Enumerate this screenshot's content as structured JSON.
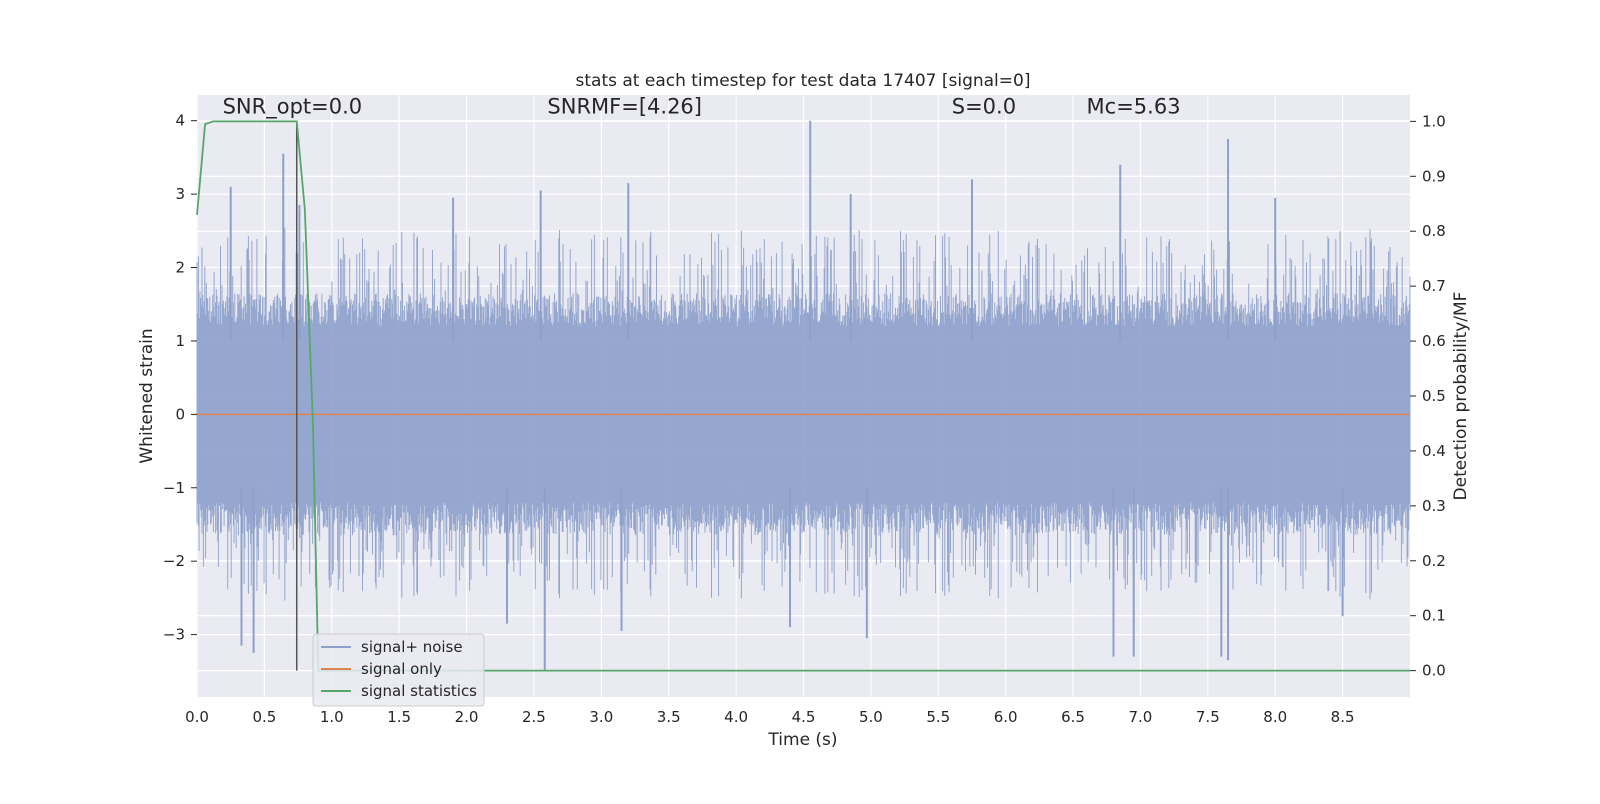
{
  "chart_data": {
    "type": "line",
    "title": "stats at each timestep for test data 17407 [signal=0]",
    "xlabel": "Time (s)",
    "ylabel": "Whitened strain",
    "y2label": "Detection probability/MF",
    "xlim": [
      0.0,
      9.0
    ],
    "ylim": [
      -3.85,
      4.35
    ],
    "y2lim": [
      -0.048,
      1.048
    ],
    "xticks": [
      0.0,
      0.5,
      1.0,
      1.5,
      2.0,
      2.5,
      3.0,
      3.5,
      4.0,
      4.5,
      5.0,
      5.5,
      6.0,
      6.5,
      7.0,
      7.5,
      8.0,
      8.5
    ],
    "yticks": [
      -3,
      -2,
      -1,
      0,
      1,
      2,
      3,
      4
    ],
    "y2ticks": [
      0.0,
      0.1,
      0.2,
      0.3,
      0.4,
      0.5,
      0.6,
      0.7,
      0.8,
      0.9,
      1.0
    ],
    "xtick_labels": [
      "0.0",
      "0.5",
      "1.0",
      "1.5",
      "2.0",
      "2.5",
      "3.0",
      "3.5",
      "4.0",
      "4.5",
      "5.0",
      "5.5",
      "6.0",
      "6.5",
      "7.0",
      "7.5",
      "8.0",
      "8.5"
    ],
    "ytick_labels": [
      "−3",
      "−2",
      "−1",
      "0",
      "1",
      "2",
      "3",
      "4"
    ],
    "y2tick_labels": [
      "0.0",
      "0.1",
      "0.2",
      "0.3",
      "0.4",
      "0.5",
      "0.6",
      "0.7",
      "0.8",
      "0.9",
      "1.0"
    ],
    "grid": true,
    "legend_placement": "lower-left",
    "colors": {
      "noise": "#8da0cb",
      "signal": "#dd8452",
      "stats": "#55a868",
      "marker": "#555555",
      "plot_bg": "#eaeaf2",
      "grid": "#ffffff"
    },
    "annotations": [
      {
        "label": "SNR_opt=0.0",
        "x": 0.19,
        "y": 4.1
      },
      {
        "label": "SNRMF=[4.26]",
        "x": 2.6,
        "y": 4.1
      },
      {
        "label": "S=0.0",
        "x": 5.6,
        "y": 4.1
      },
      {
        "label": "Mc=5.63",
        "x": 6.6,
        "y": 4.1
      }
    ],
    "marker_x": 0.74,
    "series": [
      {
        "name": "signal+ noise",
        "axis": "left",
        "kind": "noise_envelope",
        "x_range": [
          0.0,
          9.0
        ],
        "spikes": [
          {
            "x": 0.25,
            "y": 3.1
          },
          {
            "x": 0.64,
            "y": 3.55
          },
          {
            "x": 0.76,
            "y": 2.85
          },
          {
            "x": 2.55,
            "y": 3.05
          },
          {
            "x": 3.2,
            "y": 3.15
          },
          {
            "x": 4.55,
            "y": 4.0
          },
          {
            "x": 5.75,
            "y": 3.2
          },
          {
            "x": 6.85,
            "y": 3.4
          },
          {
            "x": 7.65,
            "y": 3.75
          },
          {
            "x": 1.9,
            "y": 2.95
          },
          {
            "x": 4.85,
            "y": 3.0
          },
          {
            "x": 8.0,
            "y": 2.95
          },
          {
            "x": 0.33,
            "y": -3.15
          },
          {
            "x": 0.42,
            "y": -3.25
          },
          {
            "x": 2.58,
            "y": -3.5
          },
          {
            "x": 2.3,
            "y": -2.85
          },
          {
            "x": 4.4,
            "y": -2.9
          },
          {
            "x": 4.97,
            "y": -3.05
          },
          {
            "x": 6.8,
            "y": -3.3
          },
          {
            "x": 6.95,
            "y": -3.3
          },
          {
            "x": 7.6,
            "y": -3.3
          },
          {
            "x": 7.65,
            "y": -3.35
          },
          {
            "x": 3.15,
            "y": -2.95
          },
          {
            "x": 8.5,
            "y": -2.75
          }
        ]
      },
      {
        "name": "signal only",
        "axis": "left",
        "x": [
          0.0,
          9.0
        ],
        "y": [
          0.0,
          0.0
        ]
      },
      {
        "name": "signal statistics",
        "axis": "right",
        "x": [
          0.0,
          0.06,
          0.12,
          0.5,
          0.74,
          0.8,
          0.86,
          0.9,
          9.0
        ],
        "y": [
          0.83,
          0.995,
          1.0,
          1.0,
          1.0,
          0.84,
          0.45,
          0.0,
          0.0
        ]
      }
    ]
  }
}
